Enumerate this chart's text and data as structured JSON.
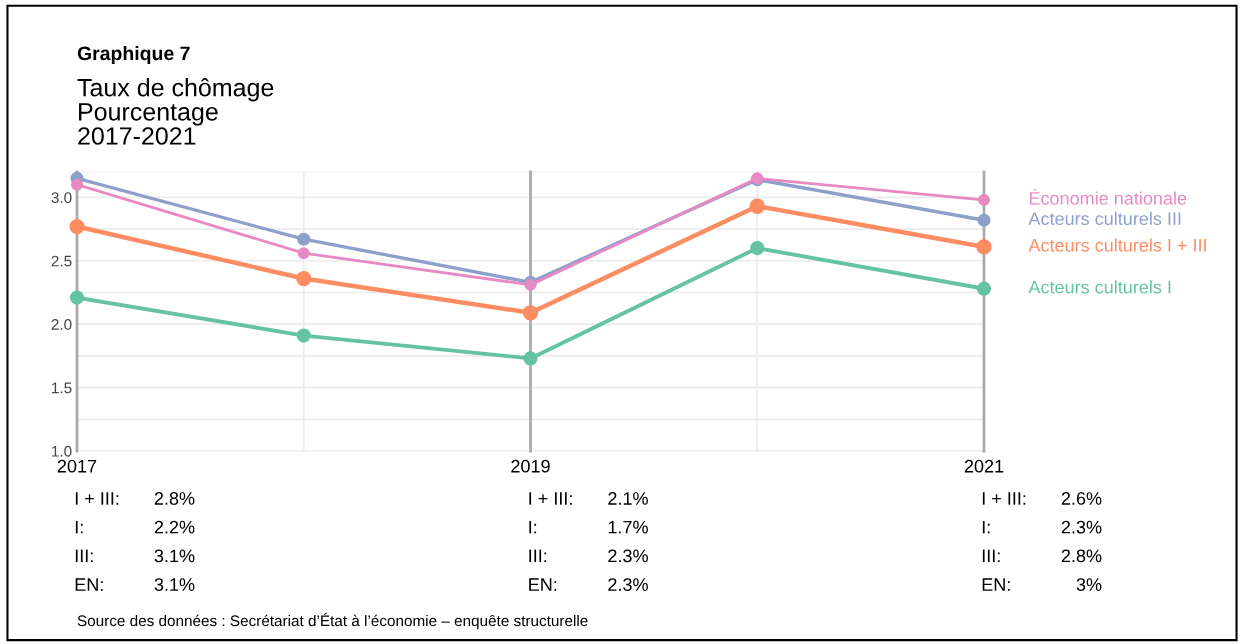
{
  "chart_data": {
    "type": "line",
    "title": "Graphique 7",
    "subtitle": "Taux de chômage\nPourcentage\n2017-2021",
    "x": [
      2017,
      2018,
      2019,
      2020,
      2021
    ],
    "series": [
      {
        "name": "Acteurs culturels I + III",
        "color": "#fc8d62",
        "values": [
          2.77,
          2.36,
          2.09,
          2.93,
          2.61
        ]
      },
      {
        "name": "Acteurs culturels I",
        "color": "#66c2a5",
        "values": [
          2.21,
          1.91,
          1.73,
          2.6,
          2.28
        ]
      },
      {
        "name": "Acteurs culturels III",
        "color": "#8da0cb",
        "values": [
          3.15,
          2.67,
          2.33,
          3.14,
          2.82
        ]
      },
      {
        "name": "Économie nationale",
        "color": "#e78ac3",
        "values": [
          3.1,
          2.56,
          2.31,
          3.15,
          2.98
        ]
      }
    ],
    "annotations": [
      "I + III:",
      "2.8%",
      "I:",
      "2.2%",
      "III:",
      "3.1%",
      "EN:",
      "3.1%",
      "I + III:",
      "2.1%",
      "I:",
      "1.7%",
      "III:",
      "2.3%",
      "EN:",
      "2.3%",
      "I + III:",
      "2.6%",
      "I:",
      "2.3%",
      "III:",
      "2.8%",
      "EN:",
      "3%",
      "Source des données : Secrétariat d’État à l’économie – enquête structurelle"
    ],
    "xlim": [
      2017,
      2021
    ],
    "xticks": [
      2017,
      {
        "value": 2018,
        "label": null
      },
      2019,
      {
        "value": 2020,
        "label": null
      },
      2021
    ],
    "ylim": [
      1.0,
      3.2
    ],
    "yticks": [
      {
        "value": 1.0,
        "label": "1.0"
      },
      {
        "value": 1.25,
        "label": null
      },
      {
        "value": 1.5,
        "label": "1.5"
      },
      {
        "value": 1.75,
        "label": null
      },
      {
        "value": 2.0,
        "label": "2.0"
      },
      {
        "value": 2.25,
        "label": null
      },
      {
        "value": 2.5,
        "label": "2.5"
      },
      {
        "value": 2.75,
        "label": null
      },
      {
        "value": 3.0,
        "label": "3.0"
      }
    ],
    "ref_lines": [
      {
        "axis": "x",
        "value": 2017,
        "color": "#aaaaaa"
      },
      {
        "axis": "x",
        "value": 2019,
        "color": "#aaaaaa"
      },
      {
        "axis": "x",
        "value": 2021,
        "color": "#aaaaaa"
      }
    ],
    "grid": true,
    "legend": false,
    "marker": "circle",
    "line_style": "solid"
  }
}
